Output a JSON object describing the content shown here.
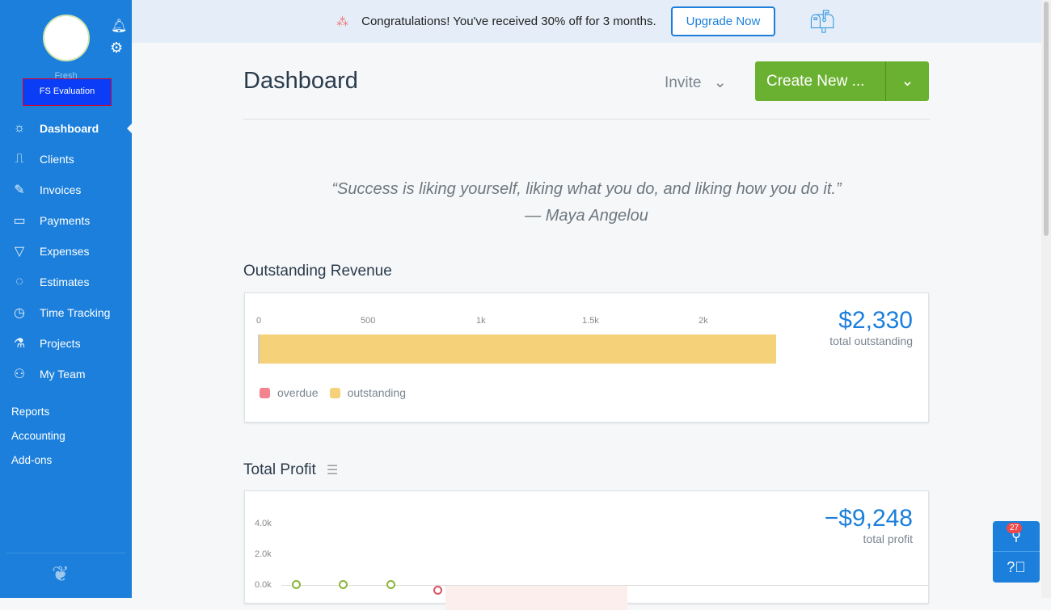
{
  "sidebar": {
    "org_name": "Fresh",
    "account_label": "FS Evaluation",
    "items": [
      {
        "label": "Dashboard",
        "icon": "dashboard-icon"
      },
      {
        "label": "Clients",
        "icon": "clients-icon"
      },
      {
        "label": "Invoices",
        "icon": "invoices-icon"
      },
      {
        "label": "Payments",
        "icon": "payments-icon"
      },
      {
        "label": "Expenses",
        "icon": "expenses-icon"
      },
      {
        "label": "Estimates",
        "icon": "estimates-icon"
      },
      {
        "label": "Time Tracking",
        "icon": "clock-icon"
      },
      {
        "label": "Projects",
        "icon": "projects-icon"
      },
      {
        "label": "My Team",
        "icon": "team-icon"
      }
    ],
    "secondary": [
      "Reports",
      "Accounting",
      "Add-ons"
    ]
  },
  "banner": {
    "text": "Congratulations! You've received 30% off for 3 months.",
    "button": "Upgrade Now"
  },
  "header": {
    "title": "Dashboard",
    "invite": "Invite",
    "create": "Create New ..."
  },
  "quote": {
    "text": "“Success is liking yourself, liking what you do, and liking how you do it.”",
    "author": "— Maya Angelou"
  },
  "outstanding": {
    "title": "Outstanding Revenue",
    "ticks": [
      "0",
      "500",
      "1k",
      "1.5k",
      "2k"
    ],
    "amount": "$2,330",
    "label": "total outstanding",
    "value": 2330,
    "legend": [
      "overdue",
      "outstanding"
    ],
    "colors": {
      "overdue": "#f2848f",
      "outstanding": "#f5d17a"
    }
  },
  "profit": {
    "title": "Total Profit",
    "amount": "−$9,248",
    "label": "total profit",
    "yticks": [
      "4.0k",
      "2.0k",
      "0.0k"
    ]
  },
  "widgets": {
    "badge": "27"
  }
}
